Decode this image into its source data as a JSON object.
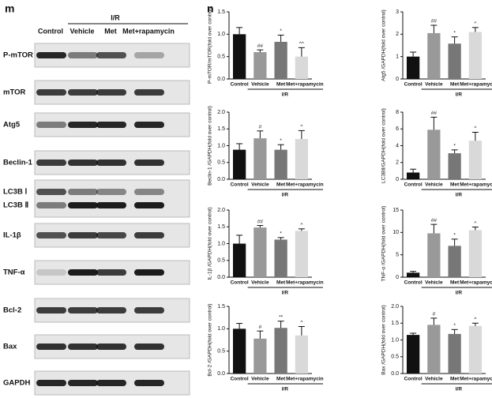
{
  "blot": {
    "panel_label": "m",
    "lanes": [
      "Control",
      "Vehicle",
      "Met",
      "Met+rapamycin"
    ],
    "group_label": "I/R",
    "rows": [
      "P-mTOR",
      "mTOR",
      "Atg5",
      "Beclin-1",
      "LC3B Ⅰ",
      "LC3B Ⅱ",
      "IL-1β",
      "TNF-α",
      "Bcl-2",
      "Bax",
      "GAPDH"
    ]
  },
  "panel_label": "n",
  "chart_data": [
    {
      "type": "bar",
      "y_label": "P-mTOR/mTOR(fold over control)",
      "categories": [
        "Control",
        "Vehicle",
        "Met",
        "Met+rapamycin"
      ],
      "group_label": "I/R",
      "values": [
        1.0,
        0.6,
        0.83,
        0.5
      ],
      "errors": [
        0.15,
        0.05,
        0.15,
        0.2
      ],
      "annotations": [
        null,
        "##",
        "*",
        "^^"
      ],
      "colors": [
        "#111111",
        "#999999",
        "#777777",
        "#d9d9d9"
      ],
      "ylim": [
        0,
        1.5
      ],
      "yticks": [
        {
          "value": 0,
          "label": "0.0"
        },
        0.5,
        {
          "value": 1,
          "label": "1.0"
        },
        1.5
      ]
    },
    {
      "type": "bar",
      "y_label": "Atg5 /GAPDH(fold over control)",
      "categories": [
        "Control",
        "Vehicle",
        "Met",
        "Met+rapamycin"
      ],
      "group_label": "I/R",
      "values": [
        1.0,
        2.05,
        1.58,
        2.1
      ],
      "errors": [
        0.2,
        0.35,
        0.3,
        0.2
      ],
      "annotations": [
        null,
        "##",
        "*",
        "^"
      ],
      "colors": [
        "#111111",
        "#999999",
        "#777777",
        "#d9d9d9"
      ],
      "ylim": [
        0,
        3
      ],
      "yticks": [
        0,
        1,
        2,
        3
      ]
    },
    {
      "type": "bar",
      "y_label": "Beclin-1 /GAPDH(fold over control)",
      "categories": [
        "Control",
        "Vehicle",
        "Met",
        "Met+rapamycin"
      ],
      "group_label": "I/R",
      "values": [
        0.88,
        1.22,
        0.88,
        1.2
      ],
      "errors": [
        0.18,
        0.22,
        0.15,
        0.25
      ],
      "annotations": [
        null,
        "#",
        "*",
        "^"
      ],
      "colors": [
        "#111111",
        "#999999",
        "#777777",
        "#d9d9d9"
      ],
      "ylim": [
        0,
        2
      ],
      "yticks": [
        {
          "value": 0,
          "label": "0.0"
        },
        0.5,
        {
          "value": 1,
          "label": "1.0"
        },
        1.5,
        {
          "value": 2,
          "label": "2.0"
        }
      ]
    },
    {
      "type": "bar",
      "y_label": "LC3BⅡ/GAPDH(fold over control)",
      "categories": [
        "Control",
        "Vehicle",
        "Met",
        "Met+rapamycin"
      ],
      "group_label": "I/R",
      "values": [
        0.8,
        5.9,
        3.1,
        4.6
      ],
      "errors": [
        0.4,
        1.5,
        0.4,
        1.0
      ],
      "annotations": [
        null,
        "##",
        "*",
        "^"
      ],
      "colors": [
        "#111111",
        "#999999",
        "#777777",
        "#d9d9d9"
      ],
      "ylim": [
        0,
        8
      ],
      "yticks": [
        0,
        2,
        4,
        6,
        8
      ]
    },
    {
      "type": "bar",
      "y_label": "IL-1β /GAPDH(fold over control)",
      "categories": [
        "Control",
        "Vehicle",
        "Met",
        "Met+rapamycin"
      ],
      "group_label": "I/R",
      "values": [
        1.0,
        1.48,
        1.12,
        1.38
      ],
      "errors": [
        0.25,
        0.06,
        0.06,
        0.06
      ],
      "annotations": [
        null,
        "##",
        "*",
        "^"
      ],
      "colors": [
        "#111111",
        "#999999",
        "#777777",
        "#d9d9d9"
      ],
      "ylim": [
        0,
        2
      ],
      "yticks": [
        {
          "value": 0,
          "label": "0.0"
        },
        0.5,
        {
          "value": 1,
          "label": "1.0"
        },
        1.5,
        {
          "value": 2,
          "label": "2.0"
        }
      ]
    },
    {
      "type": "bar",
      "y_label": "TNF-α /GAPDH(fold over control)",
      "categories": [
        "Control",
        "Vehicle",
        "Met",
        "Met+rapamycin"
      ],
      "group_label": "I/R",
      "values": [
        1.0,
        9.8,
        7.0,
        10.5
      ],
      "errors": [
        0.3,
        2.0,
        1.5,
        0.7
      ],
      "annotations": [
        null,
        "##",
        "*",
        "^"
      ],
      "colors": [
        "#111111",
        "#999999",
        "#777777",
        "#d9d9d9"
      ],
      "ylim": [
        0,
        15
      ],
      "yticks": [
        0,
        5,
        10,
        15
      ]
    },
    {
      "type": "bar",
      "y_label": "Bcl-2 /GAPDH(fold over control)",
      "categories": [
        "Control",
        "Vehicle",
        "Met",
        "Met+rapamycin"
      ],
      "group_label": "I/R",
      "values": [
        1.0,
        0.78,
        1.02,
        0.85
      ],
      "errors": [
        0.12,
        0.17,
        0.15,
        0.2
      ],
      "annotations": [
        null,
        "#",
        "**",
        "^"
      ],
      "colors": [
        "#111111",
        "#999999",
        "#777777",
        "#d9d9d9"
      ],
      "ylim": [
        0,
        1.5
      ],
      "yticks": [
        {
          "value": 0,
          "label": "0.0"
        },
        0.5,
        {
          "value": 1,
          "label": "1.0"
        },
        1.5
      ]
    },
    {
      "type": "bar",
      "y_label": "Bax /GAPDH(fold over control)",
      "categories": [
        "Control",
        "Vehicle",
        "Met",
        "Met+rapamycin"
      ],
      "group_label": "I/R",
      "values": [
        1.15,
        1.45,
        1.18,
        1.42
      ],
      "errors": [
        0.05,
        0.2,
        0.13,
        0.08
      ],
      "annotations": [
        null,
        "#",
        "*",
        "^"
      ],
      "colors": [
        "#111111",
        "#999999",
        "#777777",
        "#d9d9d9"
      ],
      "ylim": [
        0,
        2
      ],
      "yticks": [
        {
          "value": 0,
          "label": "0.0"
        },
        0.5,
        {
          "value": 1,
          "label": "1.0"
        },
        1.5,
        {
          "value": 2,
          "label": "2.0"
        }
      ]
    }
  ]
}
